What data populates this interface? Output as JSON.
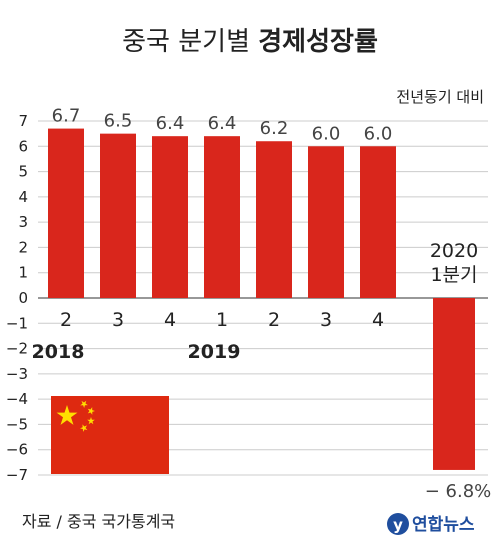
{
  "title_regular": "중국 분기별",
  "title_bold": "경제성장률",
  "unit_label": "전년동기 대비",
  "source": "자료 / 중국 국가통계국",
  "logo_text": "연합뉴스",
  "colors": {
    "bar": "#d9261c",
    "grid": "#cccccc",
    "axis": "#777777",
    "logo": "#1f4e9e",
    "flag_red": "#de2910",
    "flag_star": "#ffde00"
  },
  "flag_icon": "china-flag-icon",
  "chart_data": {
    "type": "bar",
    "title": "중국 분기별 경제성장률",
    "ylabel": "전년동기 대비",
    "ylim": [
      -7,
      7
    ],
    "yticks": [
      7,
      6,
      5,
      4,
      3,
      2,
      1,
      0,
      -1,
      -2,
      -3,
      -4,
      -5,
      -6,
      -7
    ],
    "categories": [
      "2",
      "3",
      "4",
      "1",
      "2",
      "3",
      "4",
      "2020 1분기"
    ],
    "values": [
      6.7,
      6.5,
      6.4,
      6.4,
      6.2,
      6.0,
      6.0,
      -6.8
    ],
    "value_labels": [
      "6.7",
      "6.5",
      "6.4",
      "6.4",
      "6.2",
      "6.0",
      "6.0",
      "− 6.8%"
    ],
    "year_labels": [
      {
        "text": "2018",
        "category_index": 0
      },
      {
        "text": "2019",
        "category_index": 3
      }
    ],
    "last_category_lines": [
      "2020",
      "1분기"
    ],
    "grid": true
  }
}
